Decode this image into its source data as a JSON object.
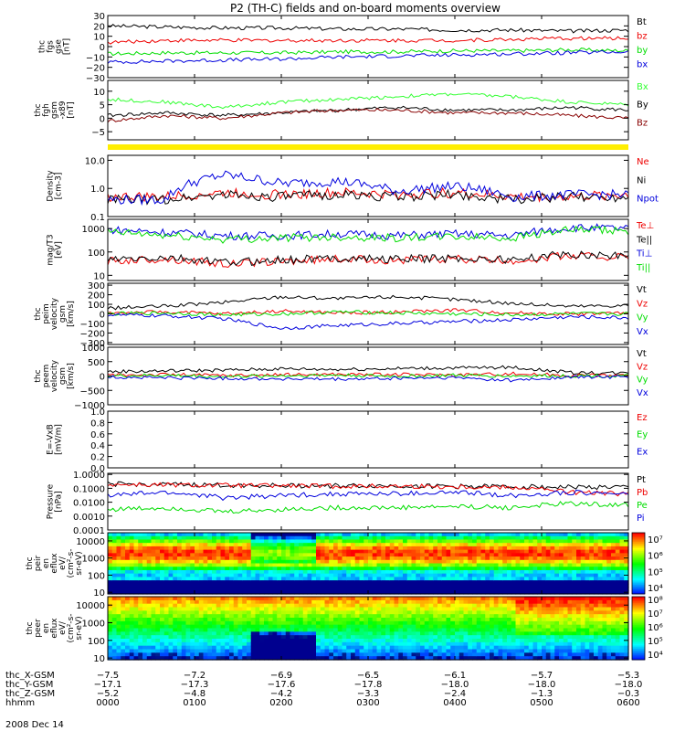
{
  "title": "P2 (TH-C) fields and on-board moments overview",
  "date_label": "2008 Dec 14",
  "colors": {
    "black": "#000000",
    "red": "#ee0000",
    "green": "#00dd00",
    "blue": "#0000dd",
    "yellow": "#ffee00",
    "darkred": "#880000",
    "brightgreen": "#33ff33"
  },
  "chart_data": [
    {
      "type": "line",
      "id": "fgs",
      "ylabel": [
        "thc",
        "fgs",
        "gse",
        "[nT]"
      ],
      "ylim": [
        -30,
        30
      ],
      "yticks": [
        {
          "v": 30,
          "t": "30"
        },
        {
          "v": 20,
          "t": "20"
        },
        {
          "v": 10,
          "t": "10"
        },
        {
          "v": 0,
          "t": "0"
        },
        {
          "v": -10,
          "t": "−10"
        },
        {
          "v": -20,
          "t": "−20"
        },
        {
          "v": -30,
          "t": "−30"
        }
      ],
      "series": [
        {
          "name": "Bt",
          "color": "#000000",
          "values": [
            20,
            19,
            18,
            18,
            17,
            17,
            16,
            16,
            15,
            16
          ]
        },
        {
          "name": "bz",
          "color": "#ee0000",
          "values": [
            4,
            6,
            6,
            6,
            6,
            6,
            6,
            7,
            8,
            8
          ]
        },
        {
          "name": "by",
          "color": "#00dd00",
          "values": [
            -7,
            -6,
            -6,
            -6,
            -5,
            -5,
            -4,
            -4,
            -3,
            -4
          ]
        },
        {
          "name": "bx",
          "color": "#0000dd",
          "values": [
            -15,
            -14,
            -13,
            -12,
            -10,
            -9,
            -8,
            -7,
            -6,
            -5
          ]
        }
      ]
    },
    {
      "type": "line",
      "id": "fgh",
      "ylabel": [
        "thc",
        "fgh",
        "gsm",
        "-x89",
        "[nT]"
      ],
      "ylim": [
        -8,
        14
      ],
      "yticks": [
        {
          "v": 10,
          "t": "10"
        },
        {
          "v": 5,
          "t": "5"
        },
        {
          "v": 0,
          "t": "0"
        },
        {
          "v": -5,
          "t": "−5"
        }
      ],
      "series": [
        {
          "name": "Bx",
          "color": "#33ff33",
          "values": [
            7,
            6,
            4,
            6,
            7,
            8,
            9,
            8,
            6,
            5
          ]
        },
        {
          "name": "By",
          "color": "#000000",
          "values": [
            1,
            2,
            1,
            2,
            3,
            4,
            3,
            3,
            4,
            3
          ]
        },
        {
          "name": "Bz",
          "color": "#880000",
          "values": [
            -1,
            1,
            0,
            2,
            3,
            3,
            2,
            2,
            1,
            0
          ]
        }
      ]
    },
    {
      "type": "line",
      "id": "density",
      "ylabel": [
        "Density",
        "[cm-3]"
      ],
      "log": true,
      "ylim": [
        0.1,
        15
      ],
      "yticks": [
        {
          "v": 10,
          "t": "10.0"
        },
        {
          "v": 1,
          "t": "1.0"
        },
        {
          "v": 0.1,
          "t": "0.1"
        }
      ],
      "series": [
        {
          "name": "Ne",
          "color": "#ee0000",
          "values": [
            0.5,
            0.5,
            0.7,
            0.6,
            0.7,
            0.6,
            0.7,
            0.5,
            0.5,
            0.6
          ]
        },
        {
          "name": "Ni",
          "color": "#000000",
          "values": [
            0.4,
            0.4,
            0.6,
            0.5,
            0.6,
            0.5,
            0.6,
            0.4,
            0.5,
            0.5
          ]
        },
        {
          "name": "Npot",
          "color": "#0000dd",
          "values": [
            0.4,
            0.4,
            3,
            1.5,
            1.8,
            0.8,
            1.2,
            0.5,
            0.6,
            0.6
          ]
        }
      ]
    },
    {
      "type": "line",
      "id": "temp",
      "ylabel": [
        "mag/T3",
        "[eV]"
      ],
      "log": true,
      "ylim": [
        6,
        2500
      ],
      "yticks": [
        {
          "v": 1000,
          "t": "1000"
        },
        {
          "v": 100,
          "t": "100"
        },
        {
          "v": 10,
          "t": "10"
        }
      ],
      "series": [
        {
          "name": "Te⊥",
          "color": "#ee0000",
          "values": [
            40,
            50,
            30,
            40,
            50,
            45,
            50,
            40,
            70,
            60
          ]
        },
        {
          "name": "Te||",
          "color": "#000000",
          "values": [
            45,
            55,
            35,
            45,
            55,
            50,
            55,
            45,
            80,
            70
          ]
        },
        {
          "name": "Ti⊥",
          "color": "#0000dd",
          "values": [
            900,
            700,
            500,
            500,
            600,
            500,
            600,
            500,
            1100,
            1000
          ]
        },
        {
          "name": "Ti||",
          "color": "#00dd00",
          "values": [
            700,
            500,
            350,
            400,
            450,
            400,
            450,
            400,
            850,
            800
          ]
        }
      ]
    },
    {
      "type": "line",
      "id": "peim",
      "ylabel": [
        "thc",
        "peim",
        "velocity",
        "gsm",
        "[km/s]"
      ],
      "ylim": [
        -320,
        320
      ],
      "yticks": [
        {
          "v": 300,
          "t": "300"
        },
        {
          "v": 200,
          "t": "200"
        },
        {
          "v": 100,
          "t": "100"
        },
        {
          "v": 0,
          "t": "0"
        },
        {
          "v": -100,
          "t": "−100"
        },
        {
          "v": -200,
          "t": "−200"
        },
        {
          "v": -300,
          "t": "−300"
        }
      ],
      "series": [
        {
          "name": "Vt",
          "color": "#000000",
          "values": [
            60,
            80,
            120,
            180,
            160,
            180,
            150,
            110,
            80,
            90
          ]
        },
        {
          "name": "Vz",
          "color": "#ee0000",
          "values": [
            10,
            20,
            0,
            30,
            10,
            20,
            40,
            10,
            0,
            10
          ]
        },
        {
          "name": "Vy",
          "color": "#00dd00",
          "values": [
            0,
            10,
            -10,
            0,
            20,
            10,
            0,
            -10,
            0,
            0
          ]
        },
        {
          "name": "Vx",
          "color": "#0000dd",
          "values": [
            -10,
            -20,
            -50,
            -150,
            -120,
            -100,
            -80,
            -60,
            -30,
            -40
          ]
        }
      ]
    },
    {
      "type": "line",
      "id": "peem",
      "ylabel": [
        "thc",
        "peem",
        "velocity",
        "gsm",
        "[km/s]"
      ],
      "ylim": [
        -1000,
        1000
      ],
      "yticks": [
        {
          "v": 1000,
          "t": "1000"
        },
        {
          "v": 500,
          "t": "500"
        },
        {
          "v": 0,
          "t": "0"
        },
        {
          "v": -500,
          "t": "−500"
        },
        {
          "v": -1000,
          "t": "−1000"
        }
      ],
      "series": [
        {
          "name": "Vt",
          "color": "#000000",
          "values": [
            150,
            180,
            200,
            250,
            230,
            260,
            280,
            300,
            120,
            100
          ]
        },
        {
          "name": "Vz",
          "color": "#ee0000",
          "values": [
            30,
            50,
            20,
            40,
            60,
            50,
            40,
            80,
            20,
            30
          ]
        },
        {
          "name": "Vy",
          "color": "#00dd00",
          "values": [
            0,
            20,
            -20,
            10,
            30,
            -10,
            20,
            0,
            10,
            0
          ]
        },
        {
          "name": "Vx",
          "color": "#0000dd",
          "values": [
            -40,
            -60,
            -80,
            -100,
            -120,
            -80,
            -60,
            -150,
            -40,
            -30
          ]
        }
      ]
    },
    {
      "type": "line",
      "id": "efield",
      "ylabel": [
        "E=-VxB",
        "[mV/m]"
      ],
      "ylim": [
        0,
        1
      ],
      "yticks": [
        {
          "v": 1.0,
          "t": "1.0"
        },
        {
          "v": 0.8,
          "t": "0.8"
        },
        {
          "v": 0.6,
          "t": "0.6"
        },
        {
          "v": 0.4,
          "t": "0.4"
        },
        {
          "v": 0.2,
          "t": "0.2"
        },
        {
          "v": 0.0,
          "t": "0.0"
        }
      ],
      "series": [
        {
          "name": "Ez",
          "color": "#ee0000",
          "values": []
        },
        {
          "name": "Ey",
          "color": "#00dd00",
          "values": []
        },
        {
          "name": "Ex",
          "color": "#0000dd",
          "values": []
        }
      ]
    },
    {
      "type": "line",
      "id": "pressure",
      "ylabel": [
        "Pressure",
        "[nPa]"
      ],
      "log": true,
      "ylim": [
        0.0001,
        1.2
      ],
      "yticks": [
        {
          "v": 1,
          "t": "1.0000"
        },
        {
          "v": 0.1,
          "t": "0.1000"
        },
        {
          "v": 0.01,
          "t": "0.0100"
        },
        {
          "v": 0.001,
          "t": "0.0010"
        },
        {
          "v": 0.0001,
          "t": "0.0001"
        }
      ],
      "series": [
        {
          "name": "Pt",
          "color": "#000000",
          "values": [
            0.2,
            0.18,
            0.17,
            0.16,
            0.15,
            0.15,
            0.14,
            0.13,
            0.12,
            0.12
          ]
        },
        {
          "name": "Pb",
          "color": "#ee0000",
          "values": [
            0.19,
            0.17,
            0.16,
            0.15,
            0.14,
            0.14,
            0.13,
            0.12,
            0.05,
            0.04
          ]
        },
        {
          "name": "Pe",
          "color": "#00dd00",
          "values": [
            0.003,
            0.004,
            0.002,
            0.003,
            0.004,
            0.004,
            0.005,
            0.004,
            0.008,
            0.006
          ]
        },
        {
          "name": "Pi",
          "color": "#0000dd",
          "values": [
            0.03,
            0.05,
            0.02,
            0.03,
            0.04,
            0.04,
            0.05,
            0.03,
            0.05,
            0.04
          ]
        }
      ]
    },
    {
      "type": "heatmap",
      "id": "peir",
      "ylabel": [
        "thc",
        "peir",
        "en",
        "eflux",
        "eV/",
        "(cm²-s-",
        "sr-eV)"
      ],
      "log": true,
      "ylim": [
        8,
        30000
      ],
      "yticks": [
        {
          "v": 10000,
          "t": "10000"
        },
        {
          "v": 1000,
          "t": "1000"
        },
        {
          "v": 100,
          "t": "100"
        },
        {
          "v": 10,
          "t": "10"
        }
      ],
      "zticks": [
        {
          "v": 7,
          "t": "10⁷"
        },
        {
          "v": 6,
          "t": "10⁶"
        },
        {
          "v": 5,
          "t": "10⁵"
        },
        {
          "v": 4,
          "t": "10⁴"
        }
      ],
      "zlim": [
        3.6,
        7.4
      ]
    },
    {
      "type": "heatmap",
      "id": "peer",
      "ylabel": [
        "thc",
        "peer",
        "en",
        "eflux",
        "eV/",
        "(cm²-s-",
        "sr-eV)"
      ],
      "log": true,
      "ylim": [
        8,
        30000
      ],
      "yticks": [
        {
          "v": 10000,
          "t": "10000"
        },
        {
          "v": 1000,
          "t": "1000"
        },
        {
          "v": 100,
          "t": "100"
        },
        {
          "v": 10,
          "t": "10"
        }
      ],
      "zticks": [
        {
          "v": 8,
          "t": "10⁸"
        },
        {
          "v": 7,
          "t": "10⁷"
        },
        {
          "v": 6,
          "t": "10⁶"
        },
        {
          "v": 5,
          "t": "10⁵"
        },
        {
          "v": 4,
          "t": "10⁴"
        }
      ],
      "zlim": [
        3.6,
        8.2
      ]
    }
  ],
  "xaxis": {
    "row_labels": [
      "thc_X-GSM",
      "thc_Y-GSM",
      "thc_Z-GSM",
      "hhmm"
    ],
    "columns": [
      [
        "−7.5",
        "−17.1",
        "−5.2",
        "0000"
      ],
      [
        "−7.2",
        "−17.3",
        "−4.8",
        "0100"
      ],
      [
        "−6.9",
        "−17.6",
        "−4.2",
        "0200"
      ],
      [
        "−6.5",
        "−17.8",
        "−3.3",
        "0300"
      ],
      [
        "−6.1",
        "−18.0",
        "−2.4",
        "0400"
      ],
      [
        "−5.7",
        "−18.0",
        "−1.3",
        "0500"
      ],
      [
        "−5.3",
        "−18.0",
        "−0.3",
        "0600"
      ]
    ]
  }
}
